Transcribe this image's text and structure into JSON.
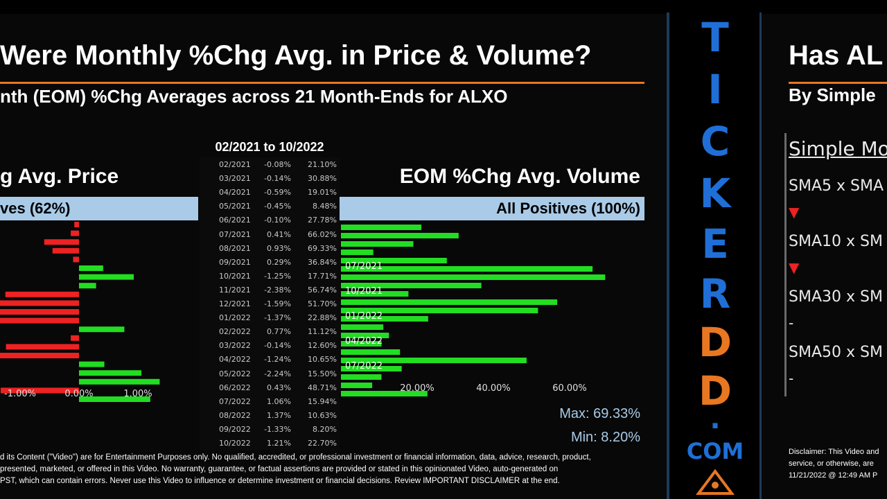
{
  "left_slide": {
    "title": "Were Monthly %Chg Avg. in Price & Volume?",
    "subtitle": "nth (EOM) %Chg Averages across 21 Month-Ends for ALXO",
    "date_range": "02/2021 to 10/2022",
    "price_header": "g Avg. Price",
    "price_band": "ves (62%)",
    "volume_header": "EOM %Chg Avg. Volume",
    "volume_band": "All Positives (100%)",
    "max_label": "Max: 69.33%",
    "min_label": "Min: 8.20%",
    "disclaimer_lines": [
      "d its Content (\"Video\") are for Entertainment Purposes only. No qualified, accredited, or professional investment or financial information, data, advice, research, product,",
      "presented, marketed, or offered in this Video. No warranty, guarantee, or factual assertions are provided or stated in this opinionated Video, auto-generated on",
      "PST, which can contain errors. Never use this Video to influence or determine investment or financial decisions. Review IMPORTANT DISCLAIMER at the end."
    ],
    "table": [
      {
        "month": "02/2021",
        "price": "-0.08%",
        "volume": "21.10%"
      },
      {
        "month": "03/2021",
        "price": "-0.14%",
        "volume": "30.88%"
      },
      {
        "month": "04/2021",
        "price": "-0.59%",
        "volume": "19.01%"
      },
      {
        "month": "05/2021",
        "price": "-0.45%",
        "volume": "8.48%"
      },
      {
        "month": "06/2021",
        "price": "-0.10%",
        "volume": "27.78%"
      },
      {
        "month": "07/2021",
        "price": "0.41%",
        "volume": "66.02%"
      },
      {
        "month": "08/2021",
        "price": "0.93%",
        "volume": "69.33%"
      },
      {
        "month": "09/2021",
        "price": "0.29%",
        "volume": "36.84%"
      },
      {
        "month": "10/2021",
        "price": "-1.25%",
        "volume": "17.71%"
      },
      {
        "month": "11/2021",
        "price": "-2.38%",
        "volume": "56.74%"
      },
      {
        "month": "12/2021",
        "price": "-1.59%",
        "volume": "51.70%"
      },
      {
        "month": "01/2022",
        "price": "-1.37%",
        "volume": "22.88%"
      },
      {
        "month": "02/2022",
        "price": "0.77%",
        "volume": "11.12%"
      },
      {
        "month": "03/2022",
        "price": "-0.14%",
        "volume": "12.60%"
      },
      {
        "month": "04/2022",
        "price": "-1.24%",
        "volume": "10.65%"
      },
      {
        "month": "05/2022",
        "price": "-2.24%",
        "volume": "15.50%"
      },
      {
        "month": "06/2022",
        "price": "0.43%",
        "volume": "48.71%"
      },
      {
        "month": "07/2022",
        "price": "1.06%",
        "volume": "15.94%"
      },
      {
        "month": "08/2022",
        "price": "1.37%",
        "volume": "10.63%"
      },
      {
        "month": "09/2022",
        "price": "-1.33%",
        "volume": "8.20%"
      },
      {
        "month": "10/2022",
        "price": "1.21%",
        "volume": "22.70%"
      }
    ]
  },
  "brand": {
    "letters": [
      "T",
      "I",
      "C",
      "K",
      "E",
      "R",
      "D",
      "D"
    ],
    "letter_colors": [
      "#1f6fd6",
      "#1f6fd6",
      "#1f6fd6",
      "#1f6fd6",
      "#1f6fd6",
      "#1f6fd6",
      "#e87722",
      "#e87722"
    ],
    "dot": ".",
    "com": "COM"
  },
  "right_slide": {
    "title": "Has AL",
    "subtitle": "By Simple",
    "section_header": "Simple Mo",
    "items": [
      {
        "label": "SMA5 x SMA",
        "signal": "▼"
      },
      {
        "label": "SMA10 x SM",
        "signal": "▼"
      },
      {
        "label": "SMA30 x SM",
        "signal": "-"
      },
      {
        "label": "SMA50 x SM",
        "signal": "-"
      }
    ],
    "disclaimer_lines": [
      "Disclaimer: This Video and",
      "service, or otherwise, are",
      "11/21/2022 @ 12:49 AM P"
    ]
  },
  "chart_data": [
    {
      "type": "bar",
      "title": "g Avg. Price",
      "orientation": "horizontal",
      "categories": [
        "02/2021",
        "03/2021",
        "04/2021",
        "05/2021",
        "06/2021",
        "07/2021",
        "08/2021",
        "09/2021",
        "10/2021",
        "11/2021",
        "12/2021",
        "01/2022",
        "02/2022",
        "03/2022",
        "04/2022",
        "05/2022",
        "06/2022",
        "07/2022",
        "08/2022",
        "09/2022",
        "10/2022"
      ],
      "values": [
        -0.08,
        -0.14,
        -0.59,
        -0.45,
        -0.1,
        0.41,
        0.93,
        0.29,
        -1.25,
        -2.38,
        -1.59,
        -1.37,
        0.77,
        -0.14,
        -1.24,
        -2.24,
        0.43,
        1.06,
        1.37,
        -1.33,
        1.21
      ],
      "tick_labels": [
        "-1.00%",
        "0.00%",
        "1.00%"
      ],
      "xlim": [
        -2.4,
        1.4
      ],
      "colors": {
        "positive": "#22dd22",
        "negative": "#ee2222"
      }
    },
    {
      "type": "bar",
      "title": "EOM %Chg Avg. Volume",
      "orientation": "horizontal",
      "categories": [
        "02/2021",
        "03/2021",
        "04/2021",
        "05/2021",
        "06/2021",
        "07/2021",
        "08/2021",
        "09/2021",
        "10/2021",
        "11/2021",
        "12/2021",
        "01/2022",
        "02/2022",
        "03/2022",
        "04/2022",
        "05/2022",
        "06/2022",
        "07/2022",
        "08/2022",
        "09/2022",
        "10/2022"
      ],
      "values": [
        21.1,
        30.88,
        19.01,
        8.48,
        27.78,
        66.02,
        69.33,
        36.84,
        17.71,
        56.74,
        51.7,
        22.88,
        11.12,
        12.6,
        10.65,
        15.5,
        48.71,
        15.94,
        10.63,
        8.2,
        22.7
      ],
      "tick_labels": [
        "20.00%",
        "40.00%",
        "60.00%"
      ],
      "category_labels": [
        "07/2021",
        "10/2021",
        "01/2022",
        "04/2022",
        "07/2022"
      ],
      "xlim": [
        0,
        80
      ],
      "colors": {
        "positive": "#22dd22"
      }
    }
  ]
}
